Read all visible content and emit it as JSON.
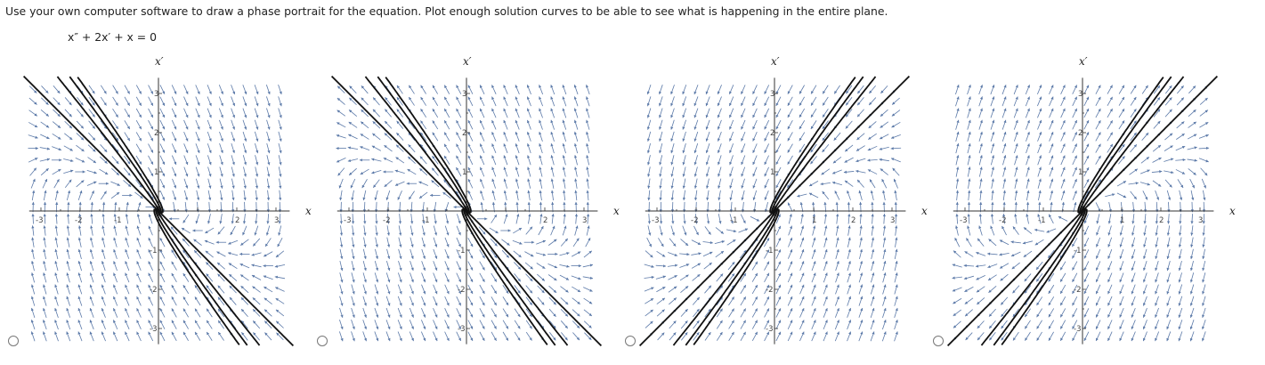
{
  "question": {
    "prompt": "Use your own computer software to draw a phase portrait for the equation. Plot enough solution curves to be able to see what is happening in the entire plane.",
    "equation": "x″ + 2x′ + x = 0"
  },
  "plot_style": {
    "field_color": "#5b79a8",
    "curve_color": "#111111",
    "axis_color": "#333333"
  },
  "chart_data": [
    {
      "type": "scatter",
      "title": "",
      "xlabel": "x",
      "ylabel": "x′",
      "xlim": [
        -3,
        3
      ],
      "ylim": [
        -3,
        3
      ],
      "xticks": [
        "-3",
        "-2",
        "-1",
        "2",
        "3"
      ],
      "yticks": [
        "3",
        "2",
        "1",
        "-1",
        "-2",
        "-3"
      ],
      "system": {
        "a": 0,
        "b": 1,
        "c": -1,
        "d": -2
      },
      "solution_curves": [
        [
          -1,
          1.9
        ],
        [
          -1.8,
          2.8
        ],
        [
          -0.6,
          0.9
        ],
        [
          -1.5,
          1.5
        ],
        [
          1,
          -1.9
        ],
        [
          1.8,
          -2.8
        ],
        [
          0.6,
          -0.9
        ],
        [
          1.5,
          -1.5
        ]
      ]
    },
    {
      "type": "scatter",
      "title": "",
      "xlabel": "x",
      "ylabel": "x′",
      "xlim": [
        -3,
        3
      ],
      "ylim": [
        -3,
        3
      ],
      "xticks": [
        "-3",
        "-2",
        "-1",
        "2",
        "3"
      ],
      "yticks": [
        "3",
        "2",
        "1",
        "-1",
        "-2",
        "-3"
      ],
      "system": {
        "a": 0,
        "b": 1,
        "c": -1,
        "d": -2
      },
      "direction": -1,
      "solution_curves": [
        [
          -1,
          1.9
        ],
        [
          -1.8,
          2.8
        ],
        [
          -0.6,
          0.9
        ],
        [
          -1.5,
          1.5
        ],
        [
          1,
          -1.9
        ],
        [
          1.8,
          -2.8
        ],
        [
          0.6,
          -0.9
        ],
        [
          1.5,
          -1.5
        ]
      ]
    },
    {
      "type": "scatter",
      "title": "",
      "xlabel": "x",
      "ylabel": "x′",
      "xlim": [
        -3,
        3
      ],
      "ylim": [
        -3,
        3
      ],
      "xticks": [
        "-3",
        "-2",
        "-1",
        "1",
        "2",
        "3"
      ],
      "yticks": [
        "3",
        "2",
        "1",
        "-1",
        "-2",
        "-3"
      ],
      "system": {
        "a": 0,
        "b": 1,
        "c": -1,
        "d": 2
      },
      "direction": -1,
      "solution_curves": [
        [
          1,
          1.9
        ],
        [
          1.8,
          2.8
        ],
        [
          0.6,
          0.9
        ],
        [
          1.5,
          1.5
        ],
        [
          -1,
          -1.9
        ],
        [
          -1.8,
          -2.8
        ],
        [
          -0.6,
          -0.9
        ],
        [
          -1.5,
          -1.5
        ]
      ]
    },
    {
      "type": "scatter",
      "title": "",
      "xlabel": "x",
      "ylabel": "x′",
      "xlim": [
        -3,
        3
      ],
      "ylim": [
        -3,
        3
      ],
      "xticks": [
        "-3",
        "-2",
        "-1",
        "1",
        "2",
        "3"
      ],
      "yticks": [
        "3",
        "2",
        "1",
        "-1",
        "-2",
        "-3"
      ],
      "system": {
        "a": 0,
        "b": 1,
        "c": -1,
        "d": 2
      },
      "solution_curves": [
        [
          1,
          1.9
        ],
        [
          1.8,
          2.8
        ],
        [
          0.6,
          0.9
        ],
        [
          1.5,
          1.5
        ],
        [
          -1,
          -1.9
        ],
        [
          -1.8,
          -2.8
        ],
        [
          -0.6,
          -0.9
        ],
        [
          -1.5,
          -1.5
        ]
      ]
    }
  ]
}
